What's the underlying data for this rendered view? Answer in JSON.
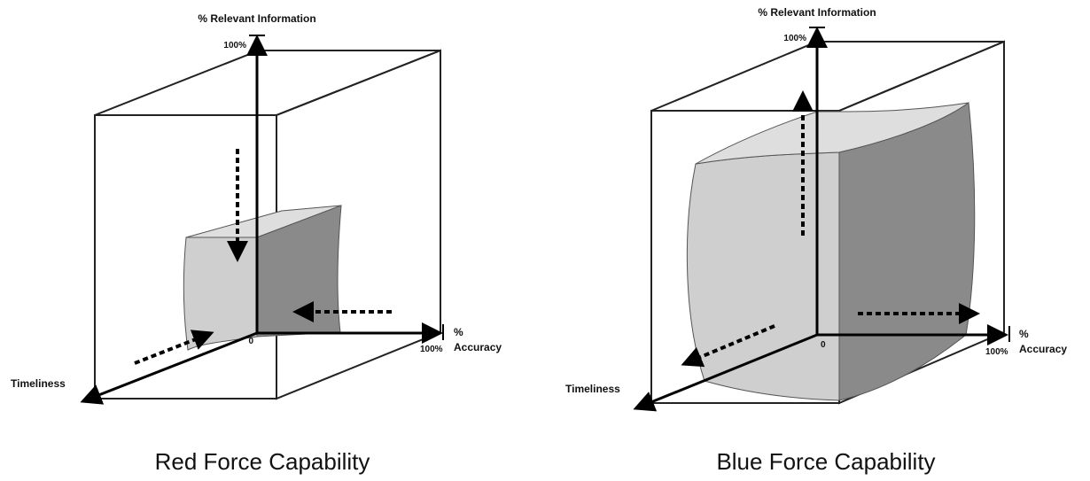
{
  "panels": [
    {
      "caption": "Red Force Capability",
      "y_axis_label": "% Relevant Information",
      "y_max_label": "100%",
      "x_axis_label_pct": "%",
      "x_axis_label": "Accuracy",
      "x_max_label": "100%",
      "z_axis_label": "Timeliness",
      "origin_label": "0"
    },
    {
      "caption": "Blue Force Capability",
      "y_axis_label": "% Relevant Information",
      "y_max_label": "100%",
      "x_axis_label_pct": "%",
      "x_axis_label": "Accuracy",
      "x_max_label": "100%",
      "z_axis_label": "Timeliness",
      "origin_label": "0"
    }
  ],
  "colors": {
    "shape_front": "#cfcfcf",
    "shape_top": "#dedede",
    "shape_side": "#8a8a8a",
    "edge": "#222222"
  }
}
